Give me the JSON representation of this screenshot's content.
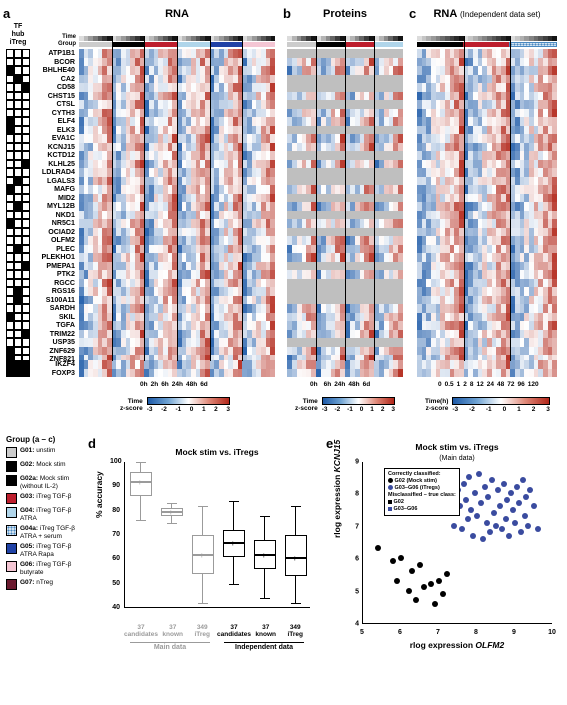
{
  "panels": {
    "a": {
      "label": "a",
      "title": "RNA"
    },
    "b": {
      "label": "b",
      "title": "Proteins"
    },
    "c": {
      "label": "c",
      "title": "RNA",
      "subtitle": "(Independent data set)"
    }
  },
  "tf_header": [
    "TF",
    "hub",
    "iTreg"
  ],
  "header_rows": [
    "Time",
    "Group"
  ],
  "genes": [
    "ATP1B1",
    "BCOR",
    "BHLHE40",
    "CA2",
    "CD58",
    "CHST15",
    "CTSL",
    "CYTH3",
    "ELF4",
    "ELK3",
    "EVA1C",
    "KCNJ15",
    "KCTD12",
    "KLHL25",
    "LDLRAD4",
    "LGALS3",
    "MAFG",
    "MID2",
    "MYL12B",
    "NKD1",
    "NR5C1",
    "OCIAD2",
    "OLFM2",
    "PLEC",
    "PLEKHO1",
    "PMEPA1",
    "PTK2",
    "RGCC",
    "RGS16",
    "S100A11",
    "SARDH",
    "SKIL",
    "TGFA",
    "TRIM22",
    "USP35",
    "ZNF629",
    "ZNF821"
  ],
  "genes_bottom": [
    "IKZF4",
    "FOXP3"
  ],
  "tf_matrix": [
    [
      0,
      0,
      0
    ],
    [
      0,
      0,
      0
    ],
    [
      1,
      0,
      0
    ],
    [
      0,
      1,
      0
    ],
    [
      0,
      0,
      1
    ],
    [
      0,
      0,
      0
    ],
    [
      0,
      0,
      0
    ],
    [
      0,
      0,
      0
    ],
    [
      1,
      0,
      0
    ],
    [
      1,
      0,
      0
    ],
    [
      0,
      0,
      0
    ],
    [
      0,
      0,
      0
    ],
    [
      0,
      0,
      0
    ],
    [
      0,
      0,
      1
    ],
    [
      0,
      0,
      0
    ],
    [
      0,
      1,
      0
    ],
    [
      1,
      0,
      0
    ],
    [
      0,
      0,
      0
    ],
    [
      0,
      1,
      0
    ],
    [
      0,
      0,
      0
    ],
    [
      1,
      0,
      0
    ],
    [
      0,
      0,
      0
    ],
    [
      0,
      0,
      0
    ],
    [
      0,
      1,
      0
    ],
    [
      0,
      0,
      0
    ],
    [
      0,
      0,
      1
    ],
    [
      0,
      0,
      0
    ],
    [
      0,
      0,
      0
    ],
    [
      0,
      1,
      0
    ],
    [
      0,
      1,
      0
    ],
    [
      0,
      0,
      0
    ],
    [
      1,
      0,
      0
    ],
    [
      0,
      0,
      0
    ],
    [
      0,
      0,
      1
    ],
    [
      0,
      0,
      0
    ],
    [
      1,
      0,
      0
    ],
    [
      1,
      0,
      0
    ]
  ],
  "tf_matrix_bottom": [
    [
      1,
      1,
      1
    ],
    [
      1,
      1,
      1
    ]
  ],
  "heatmap_a": {
    "cols": 42,
    "groups_bar": [
      {
        "color": "#cccccc",
        "span": 7
      },
      {
        "color": "#000000",
        "span": 7
      },
      {
        "color": "#bd1e2d",
        "span": 7
      },
      {
        "color": "#b0d5ea",
        "span": 7
      },
      {
        "color": "#2042a6",
        "span": 7
      },
      {
        "color": "#f4c6d4",
        "span": 7
      }
    ],
    "time_bar_gradient": true,
    "time_ticks": [
      "0h",
      "2h",
      "6h",
      "24h",
      "48h",
      "6d"
    ],
    "dividers": [
      7,
      14,
      21,
      28,
      35
    ],
    "grey_rows": []
  },
  "heatmap_b": {
    "cols": 24,
    "groups_bar": [
      {
        "color": "#cccccc",
        "span": 6
      },
      {
        "color": "#000000",
        "span": 6
      },
      {
        "color": "#bd1e2d",
        "span": 6
      },
      {
        "color": "#b0d5ea",
        "span": 6
      }
    ],
    "time_bar_gradient": true,
    "time_ticks": [
      "0h",
      "",
      "6h",
      "24h",
      "48h",
      "6d"
    ],
    "dividers": [
      6,
      12,
      18
    ],
    "grey_rows": [
      0,
      3,
      4,
      6,
      9,
      12,
      14,
      15,
      17,
      19,
      21,
      25,
      27,
      28,
      29,
      34
    ]
  },
  "heatmap_c": {
    "cols": 30,
    "groups_bar": [
      {
        "color": "#000000",
        "span": 10
      },
      {
        "color": "#bd1e2d",
        "span": 10
      },
      {
        "color": "hatch",
        "span": 10
      }
    ],
    "time_bar_gradient": true,
    "time_ticks": [
      "0",
      "0.5",
      "1",
      "2",
      "8",
      "12",
      "24",
      "48",
      "72",
      "96",
      "120"
    ],
    "dividers": [
      10,
      20
    ],
    "grey_rows": []
  },
  "heatmap_a_bottom": {
    "cols": 42
  },
  "heatmap_b_bottom": {
    "cols": 24
  },
  "heatmap_c_bottom": {
    "cols": 30
  },
  "zscore": {
    "label": "z-score",
    "ticks": [
      "-3",
      "-2",
      "-1",
      "0",
      "1",
      "2",
      "3"
    ],
    "time_label_a": "Time",
    "time_label_c": "Time(h)"
  },
  "group_legend": {
    "title": "Group (a – c)",
    "items": [
      {
        "id": "G01",
        "color": "#cccccc",
        "label": "unstim"
      },
      {
        "id": "G02",
        "color": "#000000",
        "label": "Mock stim"
      },
      {
        "id": "G02a",
        "color": "#000000",
        "label": "Mock stim\n(without IL-2)"
      },
      {
        "id": "G03",
        "color": "#bd1e2d",
        "label": "iTreg TGF-β"
      },
      {
        "id": "G04",
        "color": "#b0d5ea",
        "label": "iTreg TGF-β\nATRA"
      },
      {
        "id": "G04a",
        "color": "hatch",
        "label": "iTreg TGF-β\nATRA + serum"
      },
      {
        "id": "G05",
        "color": "#2042a6",
        "label": "iTreg TGF-β\nATRA Rapa"
      },
      {
        "id": "G06",
        "color": "#f4c6d4",
        "label": "iTreg TGF-β\nbutyrate"
      },
      {
        "id": "G07",
        "color": "#6b1a2f",
        "label": "nTreg"
      }
    ]
  },
  "panel_d": {
    "label": "d",
    "title": "Mock stim vs. iTregs",
    "ylabel": "% accuracy",
    "yticks": [
      40,
      50,
      60,
      70,
      80,
      90,
      100
    ],
    "ylim": [
      40,
      100
    ],
    "boxes": [
      {
        "x": 0,
        "q1": 86,
        "med": 92,
        "q3": 96,
        "lo": 76,
        "hi": 100,
        "set": "main",
        "label": "37\ncandidates"
      },
      {
        "x": 1,
        "q1": 78,
        "med": 80,
        "q3": 81,
        "lo": 75,
        "hi": 83,
        "set": "main",
        "label": "37\nknown"
      },
      {
        "x": 2,
        "q1": 54,
        "med": 62,
        "q3": 70,
        "lo": 42,
        "hi": 82,
        "set": "main",
        "label": "349\niTreg"
      },
      {
        "x": 3,
        "q1": 61,
        "med": 67,
        "q3": 72,
        "lo": 50,
        "hi": 84,
        "set": "ind",
        "label": "37\ncandidates"
      },
      {
        "x": 4,
        "q1": 56,
        "med": 62,
        "q3": 68,
        "lo": 44,
        "hi": 78,
        "set": "ind",
        "label": "37\nknown"
      },
      {
        "x": 5,
        "q1": 53,
        "med": 61,
        "q3": 70,
        "lo": 42,
        "hi": 82,
        "set": "ind",
        "label": "349\niTreg"
      }
    ],
    "group_main": "Main data",
    "group_ind": "Independent data"
  },
  "panel_e": {
    "label": "e",
    "title": "Mock stim vs. iTregs",
    "subtitle": "(Main data)",
    "xlabel": "rlog expression OLFM2",
    "ylabel": "rlog expression KCNJ15",
    "xlim": [
      5,
      10
    ],
    "ylim": [
      4,
      9
    ],
    "xticks": [
      5,
      6,
      7,
      8,
      9,
      10
    ],
    "yticks": [
      4,
      5,
      6,
      7,
      8,
      9
    ],
    "legend": {
      "correct": "Correctly classified:",
      "c1": "G02 (Mock stim)",
      "c2": "G03–G06 (iTregs)",
      "mis": "Misclassified – true class:",
      "m1": "G02",
      "m2": "G03–G06"
    },
    "points": [
      {
        "x": 5.4,
        "y": 6.3,
        "c": "k"
      },
      {
        "x": 5.8,
        "y": 5.9,
        "c": "k"
      },
      {
        "x": 5.9,
        "y": 5.3,
        "c": "k"
      },
      {
        "x": 6.0,
        "y": 6.0,
        "c": "k"
      },
      {
        "x": 6.2,
        "y": 5.0,
        "c": "k"
      },
      {
        "x": 6.3,
        "y": 5.6,
        "c": "k"
      },
      {
        "x": 6.5,
        "y": 5.8,
        "c": "k"
      },
      {
        "x": 6.6,
        "y": 5.1,
        "c": "k"
      },
      {
        "x": 6.8,
        "y": 5.2,
        "c": "k"
      },
      {
        "x": 6.9,
        "y": 4.6,
        "c": "k"
      },
      {
        "x": 7.0,
        "y": 5.3,
        "c": "k"
      },
      {
        "x": 7.1,
        "y": 4.9,
        "c": "k"
      },
      {
        "x": 7.2,
        "y": 5.5,
        "c": "k"
      },
      {
        "x": 6.4,
        "y": 4.7,
        "c": "k"
      },
      {
        "x": 7.0,
        "y": 8.4,
        "c": "b"
      },
      {
        "x": 7.1,
        "y": 7.9,
        "c": "b"
      },
      {
        "x": 7.2,
        "y": 8.2,
        "c": "b"
      },
      {
        "x": 7.3,
        "y": 7.4,
        "c": "b"
      },
      {
        "x": 7.35,
        "y": 8.6,
        "c": "b"
      },
      {
        "x": 7.4,
        "y": 7.0,
        "c": "b"
      },
      {
        "x": 7.5,
        "y": 8.1,
        "c": "b"
      },
      {
        "x": 7.55,
        "y": 7.6,
        "c": "b"
      },
      {
        "x": 7.6,
        "y": 6.9,
        "c": "b"
      },
      {
        "x": 7.65,
        "y": 8.3,
        "c": "b"
      },
      {
        "x": 7.7,
        "y": 7.8,
        "c": "b"
      },
      {
        "x": 7.75,
        "y": 7.2,
        "c": "b"
      },
      {
        "x": 7.8,
        "y": 8.5,
        "c": "b"
      },
      {
        "x": 7.85,
        "y": 7.5,
        "c": "b"
      },
      {
        "x": 7.9,
        "y": 6.7,
        "c": "b"
      },
      {
        "x": 7.95,
        "y": 8.0,
        "c": "b"
      },
      {
        "x": 8.0,
        "y": 7.3,
        "c": "b"
      },
      {
        "x": 8.05,
        "y": 8.6,
        "c": "b"
      },
      {
        "x": 8.1,
        "y": 7.7,
        "c": "b"
      },
      {
        "x": 8.15,
        "y": 6.6,
        "c": "b"
      },
      {
        "x": 8.2,
        "y": 8.2,
        "c": "b"
      },
      {
        "x": 8.25,
        "y": 7.1,
        "c": "b"
      },
      {
        "x": 8.3,
        "y": 7.9,
        "c": "b"
      },
      {
        "x": 8.35,
        "y": 6.8,
        "c": "b"
      },
      {
        "x": 8.4,
        "y": 8.4,
        "c": "b"
      },
      {
        "x": 8.45,
        "y": 7.4,
        "c": "b"
      },
      {
        "x": 8.5,
        "y": 7.0,
        "c": "b"
      },
      {
        "x": 8.55,
        "y": 8.1,
        "c": "b"
      },
      {
        "x": 8.6,
        "y": 7.6,
        "c": "b"
      },
      {
        "x": 8.65,
        "y": 6.9,
        "c": "b"
      },
      {
        "x": 8.7,
        "y": 8.3,
        "c": "b"
      },
      {
        "x": 8.75,
        "y": 7.2,
        "c": "b"
      },
      {
        "x": 8.8,
        "y": 7.8,
        "c": "b"
      },
      {
        "x": 8.85,
        "y": 6.7,
        "c": "b"
      },
      {
        "x": 8.9,
        "y": 8.0,
        "c": "b"
      },
      {
        "x": 8.95,
        "y": 7.5,
        "c": "b"
      },
      {
        "x": 9.0,
        "y": 7.1,
        "c": "b"
      },
      {
        "x": 9.05,
        "y": 8.2,
        "c": "b"
      },
      {
        "x": 9.1,
        "y": 7.7,
        "c": "b"
      },
      {
        "x": 9.15,
        "y": 6.8,
        "c": "b"
      },
      {
        "x": 9.2,
        "y": 8.4,
        "c": "b"
      },
      {
        "x": 9.25,
        "y": 7.3,
        "c": "b"
      },
      {
        "x": 9.3,
        "y": 7.9,
        "c": "b"
      },
      {
        "x": 9.35,
        "y": 7.0,
        "c": "b"
      },
      {
        "x": 9.4,
        "y": 8.1,
        "c": "b"
      },
      {
        "x": 9.5,
        "y": 7.6,
        "c": "b"
      },
      {
        "x": 9.6,
        "y": 6.9,
        "c": "b"
      }
    ]
  },
  "heatmap_seed": 4217
}
